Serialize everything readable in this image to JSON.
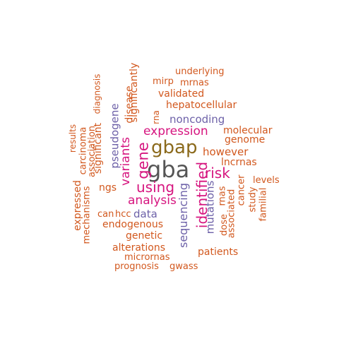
{
  "palette": {
    "orange": "#d2581e",
    "magenta": "#d6157f",
    "purple": "#6d61a8",
    "olive": "#8b6a1c",
    "gray": "#555555"
  },
  "words": [
    {
      "text": "gba",
      "color": "gray"
    },
    {
      "text": "gbap",
      "color": "olive"
    },
    {
      "text": "gene",
      "color": "magenta"
    },
    {
      "text": "using",
      "color": "magenta"
    },
    {
      "text": "identified",
      "color": "magenta"
    },
    {
      "text": "risk",
      "color": "magenta"
    },
    {
      "text": "expression",
      "color": "magenta"
    },
    {
      "text": "variants",
      "color": "magenta"
    },
    {
      "text": "analysis",
      "color": "magenta"
    },
    {
      "text": "sequencing",
      "color": "purple"
    },
    {
      "text": "pseudogene",
      "color": "purple"
    },
    {
      "text": "noncoding",
      "color": "purple"
    },
    {
      "text": "data",
      "color": "purple"
    },
    {
      "text": "mutations",
      "color": "purple"
    },
    {
      "text": "underlying",
      "color": "orange"
    },
    {
      "text": "mirp",
      "color": "orange"
    },
    {
      "text": "mrnas",
      "color": "orange"
    },
    {
      "text": "validated",
      "color": "orange"
    },
    {
      "text": "hepatocellular",
      "color": "orange"
    },
    {
      "text": "significantly",
      "color": "orange"
    },
    {
      "text": "disease",
      "color": "orange"
    },
    {
      "text": "rna",
      "color": "orange"
    },
    {
      "text": "diagnosis",
      "color": "orange"
    },
    {
      "text": "results",
      "color": "orange"
    },
    {
      "text": "carcinoma",
      "color": "orange"
    },
    {
      "text": "association",
      "color": "orange"
    },
    {
      "text": "significant",
      "color": "orange"
    },
    {
      "text": "molecular",
      "color": "orange"
    },
    {
      "text": "genome",
      "color": "orange"
    },
    {
      "text": "however",
      "color": "orange"
    },
    {
      "text": "lncrnas",
      "color": "orange"
    },
    {
      "text": "levels",
      "color": "orange"
    },
    {
      "text": "cancer",
      "color": "orange"
    },
    {
      "text": "study",
      "color": "orange"
    },
    {
      "text": "familial",
      "color": "orange"
    },
    {
      "text": "rnas",
      "color": "orange"
    },
    {
      "text": "dose",
      "color": "orange"
    },
    {
      "text": "associated",
      "color": "orange"
    },
    {
      "text": "ngs",
      "color": "orange"
    },
    {
      "text": "expressed",
      "color": "orange"
    },
    {
      "text": "mechanisms",
      "color": "orange"
    },
    {
      "text": "can",
      "color": "orange"
    },
    {
      "text": "hcc",
      "color": "orange"
    },
    {
      "text": "endogenous",
      "color": "orange"
    },
    {
      "text": "genetic",
      "color": "orange"
    },
    {
      "text": "alterations",
      "color": "orange"
    },
    {
      "text": "patients",
      "color": "orange"
    },
    {
      "text": "micrornas",
      "color": "orange"
    },
    {
      "text": "prognosis",
      "color": "orange"
    },
    {
      "text": "gwass",
      "color": "orange"
    }
  ]
}
